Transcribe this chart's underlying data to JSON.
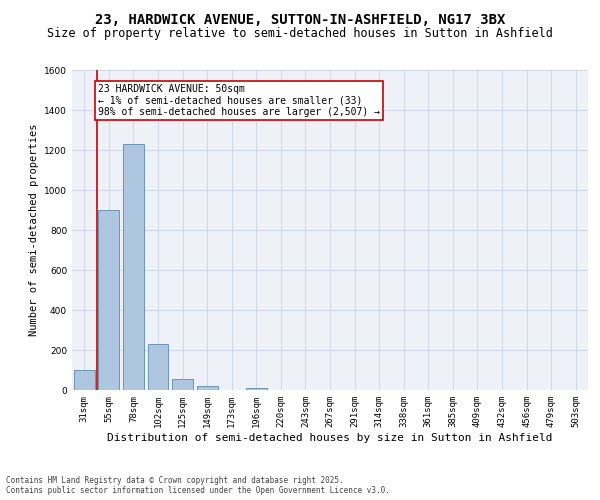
{
  "title1": "23, HARDWICK AVENUE, SUTTON-IN-ASHFIELD, NG17 3BX",
  "title2": "Size of property relative to semi-detached houses in Sutton in Ashfield",
  "xlabel": "Distribution of semi-detached houses by size in Sutton in Ashfield",
  "ylabel": "Number of semi-detached properties",
  "categories": [
    "31sqm",
    "55sqm",
    "78sqm",
    "102sqm",
    "125sqm",
    "149sqm",
    "173sqm",
    "196sqm",
    "220sqm",
    "243sqm",
    "267sqm",
    "291sqm",
    "314sqm",
    "338sqm",
    "361sqm",
    "385sqm",
    "409sqm",
    "432sqm",
    "456sqm",
    "479sqm",
    "503sqm"
  ],
  "values": [
    100,
    900,
    1230,
    230,
    55,
    20,
    0,
    10,
    0,
    0,
    0,
    0,
    0,
    0,
    0,
    0,
    0,
    0,
    0,
    0,
    0
  ],
  "bar_color": "#aec6e0",
  "bar_edge_color": "#5a8ab0",
  "highlight_color": "#cc0000",
  "annotation_text": "23 HARDWICK AVENUE: 50sqm\n← 1% of semi-detached houses are smaller (33)\n98% of semi-detached houses are larger (2,507) →",
  "annotation_box_color": "#cc0000",
  "ylim": [
    0,
    1600
  ],
  "yticks": [
    0,
    200,
    400,
    600,
    800,
    1000,
    1200,
    1400,
    1600
  ],
  "grid_color": "#d0d8e8",
  "background_color": "#eef2f8",
  "footer_text": "Contains HM Land Registry data © Crown copyright and database right 2025.\nContains public sector information licensed under the Open Government Licence v3.0.",
  "title1_fontsize": 10,
  "title2_fontsize": 8.5,
  "xlabel_fontsize": 8,
  "ylabel_fontsize": 7.5,
  "tick_fontsize": 6.5,
  "annotation_fontsize": 7,
  "footer_fontsize": 5.5
}
